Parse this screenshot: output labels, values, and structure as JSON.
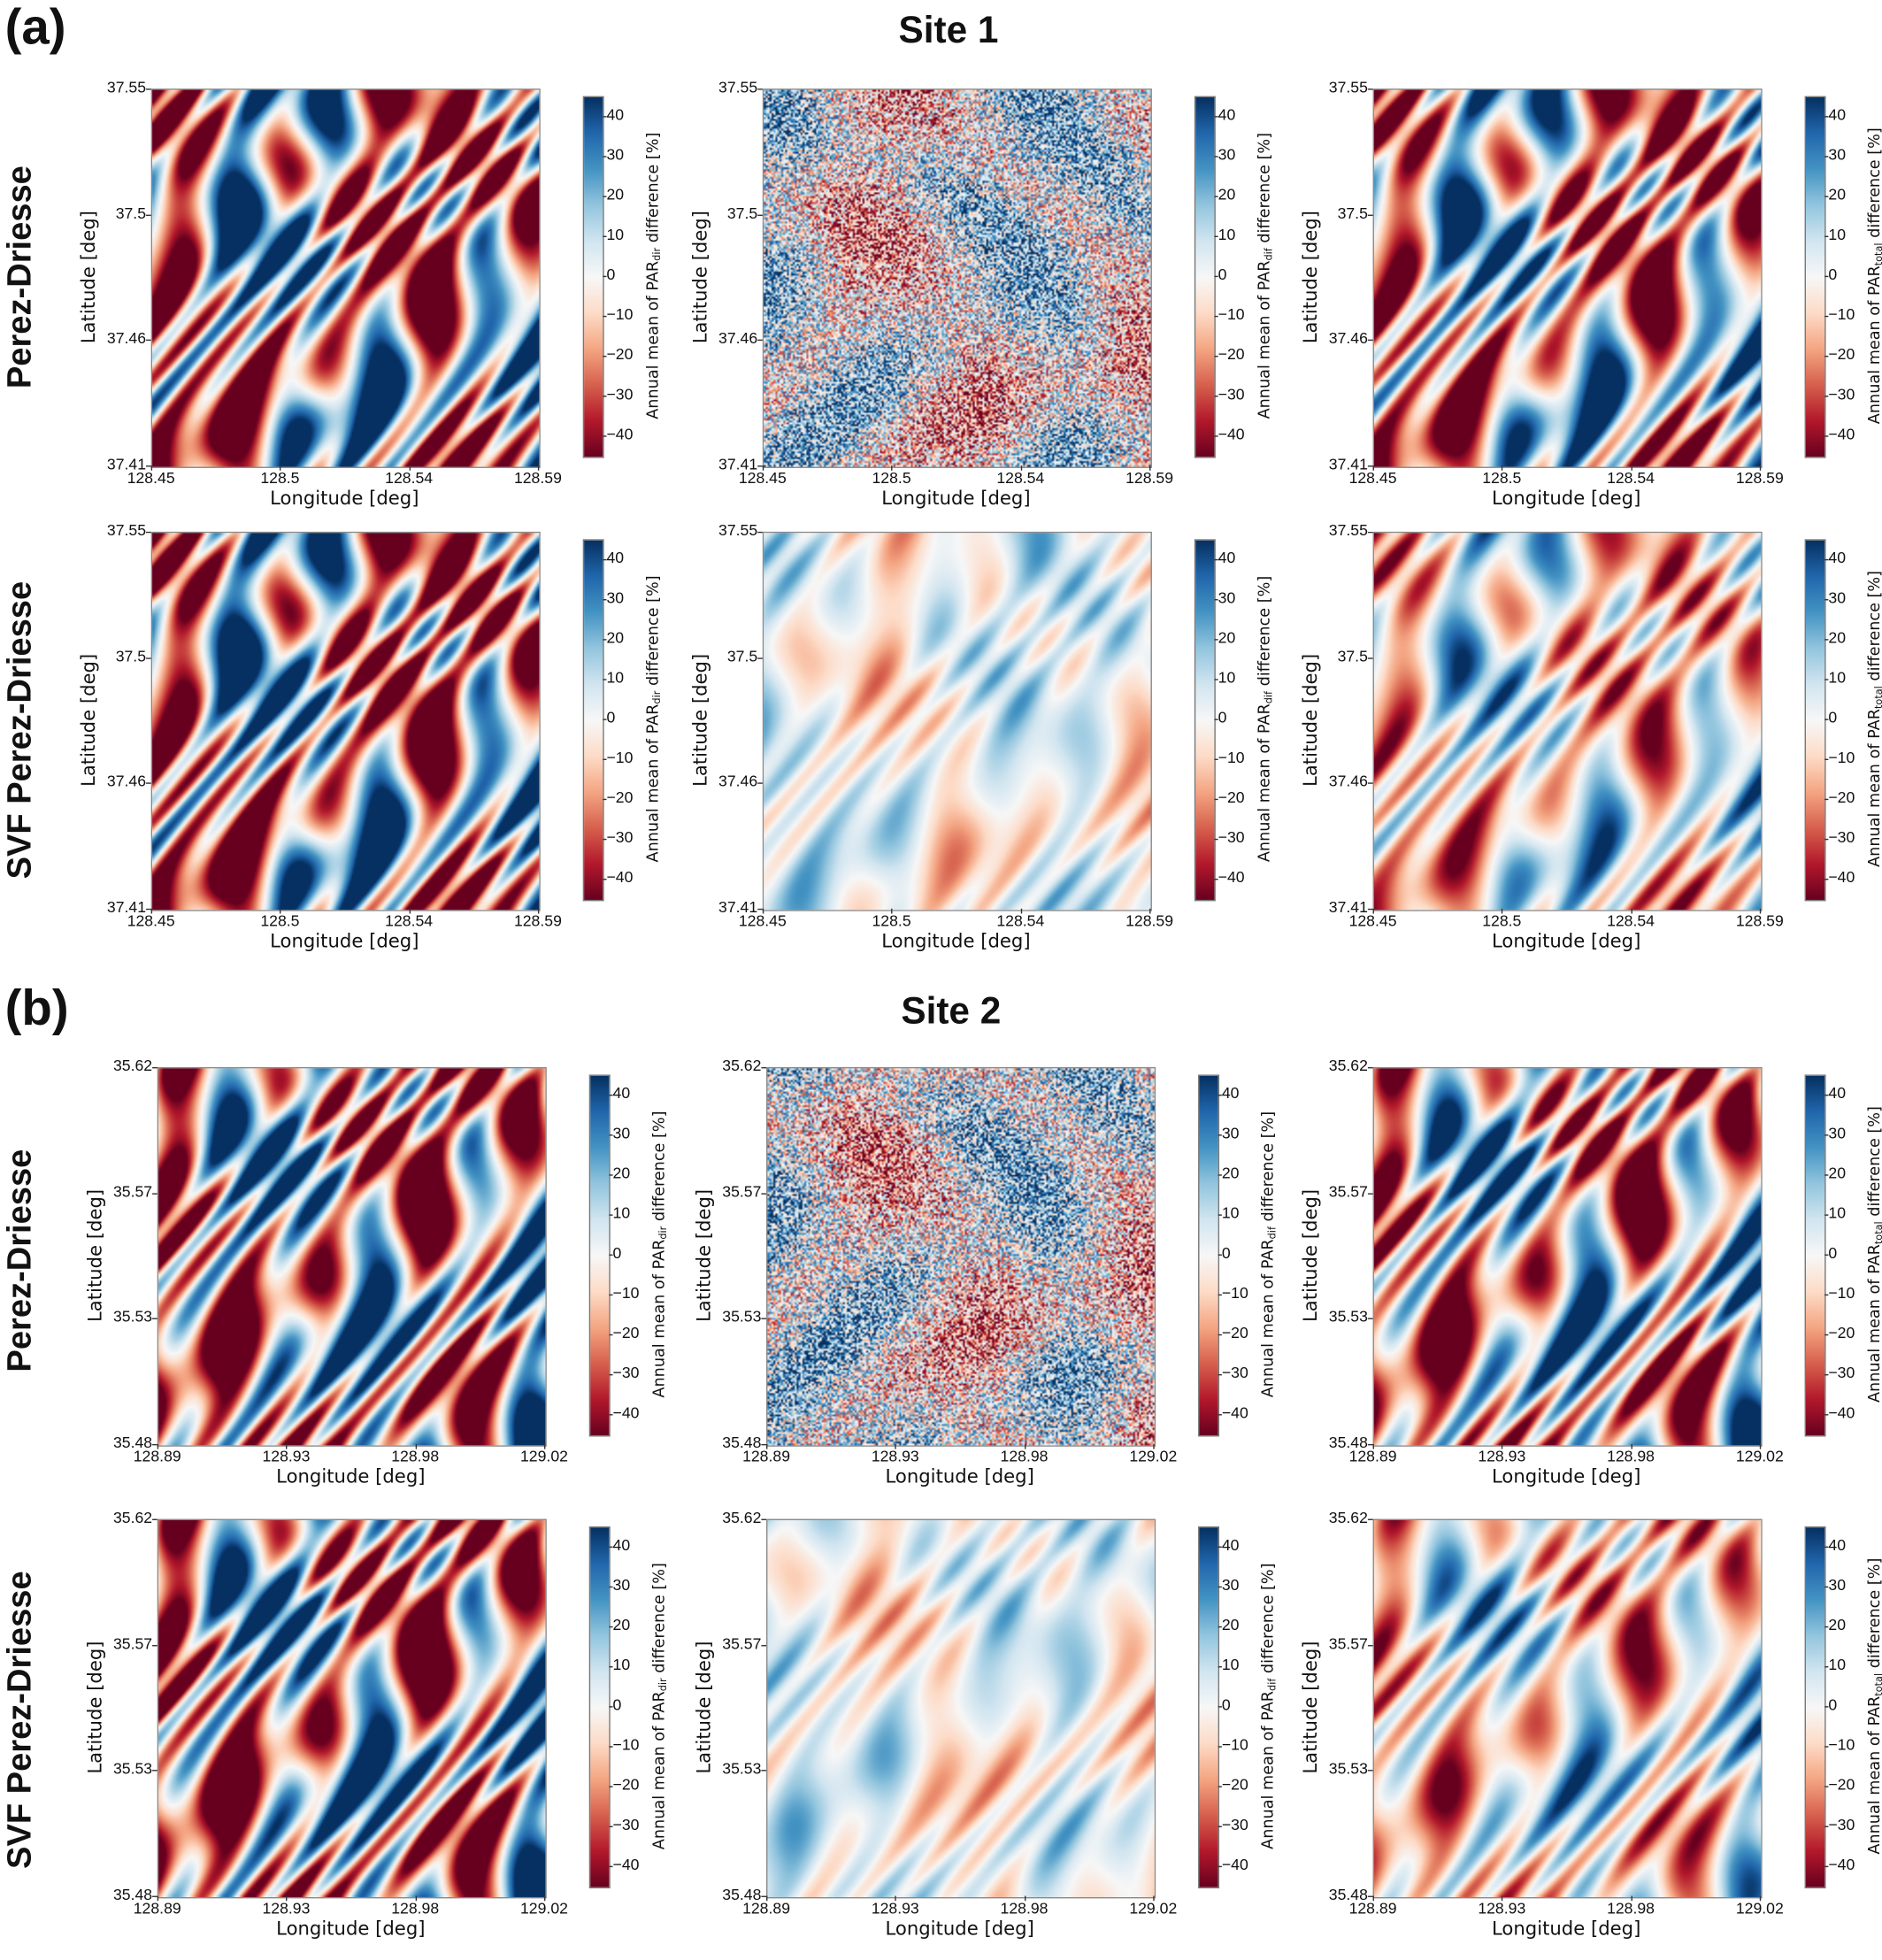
{
  "figure": {
    "panels": [
      {
        "letter": "(a)",
        "title": "Site 1",
        "rows": [
          "Perez-Driesse",
          "SVF Perez-Driesse"
        ]
      },
      {
        "letter": "(b)",
        "title": "Site 2",
        "rows": [
          "Perez-Driesse",
          "SVF Perez-Driesse"
        ]
      }
    ]
  },
  "colormap": {
    "name": "RdBu",
    "range": [
      -45,
      45
    ],
    "colors": [
      "#67001f",
      "#b2182b",
      "#d6604d",
      "#f4a582",
      "#fddbc7",
      "#f7f7f7",
      "#d1e5f0",
      "#92c5de",
      "#4393c3",
      "#2166ac",
      "#053061"
    ]
  },
  "chart_data": [
    {
      "type": "heatmap",
      "site": "Site 1",
      "model": "Perez-Driesse",
      "xlabel": "Longitude [deg]",
      "ylabel": "Latitude [deg]",
      "xticks": [
        "128.45",
        "128.5",
        "128.54",
        "128.59"
      ],
      "yticks": [
        "37.55",
        "37.5",
        "37.46",
        "37.41"
      ],
      "xlim": [
        128.45,
        128.59
      ],
      "ylim": [
        37.41,
        37.55
      ],
      "colorbar": {
        "pre": "Annual mean of PAR",
        "sub": "dir",
        "post": " difference [%]",
        "ticks": [
          "40",
          "30",
          "20",
          "10",
          "0",
          "−10",
          "−20",
          "−30",
          "−40"
        ],
        "range": [
          -45,
          45
        ]
      }
    },
    {
      "type": "heatmap",
      "site": "Site 1",
      "model": "Perez-Driesse",
      "xlabel": "Longitude [deg]",
      "ylabel": "Latitude [deg]",
      "xticks": [
        "128.45",
        "128.5",
        "128.54",
        "128.59"
      ],
      "yticks": [
        "37.55",
        "37.5",
        "37.46",
        "37.41"
      ],
      "xlim": [
        128.45,
        128.59
      ],
      "ylim": [
        37.41,
        37.55
      ],
      "colorbar": {
        "pre": "Annual mean of PAR",
        "sub": "dif",
        "post": " difference [%]",
        "ticks": [
          "40",
          "30",
          "20",
          "10",
          "0",
          "−10",
          "−20",
          "−30",
          "−40"
        ],
        "range": [
          -45,
          45
        ]
      }
    },
    {
      "type": "heatmap",
      "site": "Site 1",
      "model": "Perez-Driesse",
      "xlabel": "Longitude [deg]",
      "ylabel": "Latitude [deg]",
      "xticks": [
        "128.45",
        "128.5",
        "128.54",
        "128.59"
      ],
      "yticks": [
        "37.55",
        "37.5",
        "37.46",
        "37.41"
      ],
      "xlim": [
        128.45,
        128.59
      ],
      "ylim": [
        37.41,
        37.55
      ],
      "colorbar": {
        "pre": "Annual mean of PAR",
        "sub": "total",
        "post": " difference [%]",
        "ticks": [
          "40",
          "30",
          "20",
          "10",
          "0",
          "−10",
          "−20",
          "−30",
          "−40"
        ],
        "range": [
          -45,
          45
        ]
      }
    },
    {
      "type": "heatmap",
      "site": "Site 1",
      "model": "SVF Perez-Driesse",
      "xlabel": "Longitude [deg]",
      "ylabel": "Latitude [deg]",
      "xticks": [
        "128.45",
        "128.5",
        "128.54",
        "128.59"
      ],
      "yticks": [
        "37.55",
        "37.5",
        "37.46",
        "37.41"
      ],
      "xlim": [
        128.45,
        128.59
      ],
      "ylim": [
        37.41,
        37.55
      ],
      "colorbar": {
        "pre": "Annual mean of PAR",
        "sub": "dir",
        "post": " difference [%]",
        "ticks": [
          "40",
          "30",
          "20",
          "10",
          "0",
          "−10",
          "−20",
          "−30",
          "−40"
        ],
        "range": [
          -45,
          45
        ]
      }
    },
    {
      "type": "heatmap",
      "site": "Site 1",
      "model": "SVF Perez-Driesse",
      "xlabel": "Longitude [deg]",
      "ylabel": "Latitude [deg]",
      "xticks": [
        "128.45",
        "128.5",
        "128.54",
        "128.59"
      ],
      "yticks": [
        "37.55",
        "37.5",
        "37.46",
        "37.41"
      ],
      "xlim": [
        128.45,
        128.59
      ],
      "ylim": [
        37.41,
        37.55
      ],
      "colorbar": {
        "pre": "Annual mean of PAR",
        "sub": "dif",
        "post": " difference [%]",
        "ticks": [
          "40",
          "30",
          "20",
          "10",
          "0",
          "−10",
          "−20",
          "−30",
          "−40"
        ],
        "range": [
          -45,
          45
        ]
      }
    },
    {
      "type": "heatmap",
      "site": "Site 1",
      "model": "SVF Perez-Driesse",
      "xlabel": "Longitude [deg]",
      "ylabel": "Latitude [deg]",
      "xticks": [
        "128.45",
        "128.5",
        "128.54",
        "128.59"
      ],
      "yticks": [
        "37.55",
        "37.5",
        "37.46",
        "37.41"
      ],
      "xlim": [
        128.45,
        128.59
      ],
      "ylim": [
        37.41,
        37.55
      ],
      "colorbar": {
        "pre": "Annual mean of PAR",
        "sub": "total",
        "post": " difference [%]",
        "ticks": [
          "40",
          "30",
          "20",
          "10",
          "0",
          "−10",
          "−20",
          "−30",
          "−40"
        ],
        "range": [
          -45,
          45
        ]
      }
    },
    {
      "type": "heatmap",
      "site": "Site 2",
      "model": "Perez-Driesse",
      "xlabel": "Longitude [deg]",
      "ylabel": "Latitude [deg]",
      "xticks": [
        "128.89",
        "128.93",
        "128.98",
        "129.02"
      ],
      "yticks": [
        "35.62",
        "35.57",
        "35.53",
        "35.48"
      ],
      "xlim": [
        128.89,
        129.02
      ],
      "ylim": [
        35.48,
        35.62
      ],
      "colorbar": {
        "pre": "Annual mean of PAR",
        "sub": "dir",
        "post": " difference [%]",
        "ticks": [
          "40",
          "30",
          "20",
          "10",
          "0",
          "−10",
          "−20",
          "−30",
          "−40"
        ],
        "range": [
          -45,
          45
        ]
      }
    },
    {
      "type": "heatmap",
      "site": "Site 2",
      "model": "Perez-Driesse",
      "xlabel": "Longitude [deg]",
      "ylabel": "Latitude [deg]",
      "xticks": [
        "128.89",
        "128.93",
        "128.98",
        "129.02"
      ],
      "yticks": [
        "35.62",
        "35.57",
        "35.53",
        "35.48"
      ],
      "xlim": [
        128.89,
        129.02
      ],
      "ylim": [
        35.48,
        35.62
      ],
      "colorbar": {
        "pre": "Annual mean of PAR",
        "sub": "dif",
        "post": " difference [%]",
        "ticks": [
          "40",
          "30",
          "20",
          "10",
          "0",
          "−10",
          "−20",
          "−30",
          "−40"
        ],
        "range": [
          -45,
          45
        ]
      }
    },
    {
      "type": "heatmap",
      "site": "Site 2",
      "model": "Perez-Driesse",
      "xlabel": "Longitude [deg]",
      "ylabel": "Latitude [deg]",
      "xticks": [
        "128.89",
        "128.93",
        "128.98",
        "129.02"
      ],
      "yticks": [
        "35.62",
        "35.57",
        "35.53",
        "35.48"
      ],
      "xlim": [
        128.89,
        129.02
      ],
      "ylim": [
        35.48,
        35.62
      ],
      "colorbar": {
        "pre": "Annual mean of PAR",
        "sub": "total",
        "post": " difference [%]",
        "ticks": [
          "40",
          "30",
          "20",
          "10",
          "0",
          "−10",
          "−20",
          "−30",
          "−40"
        ],
        "range": [
          -45,
          45
        ]
      }
    },
    {
      "type": "heatmap",
      "site": "Site 2",
      "model": "SVF Perez-Driesse",
      "xlabel": "Longitude [deg]",
      "ylabel": "Latitude [deg]",
      "xticks": [
        "128.89",
        "128.93",
        "128.98",
        "129.02"
      ],
      "yticks": [
        "35.62",
        "35.57",
        "35.53",
        "35.48"
      ],
      "xlim": [
        128.89,
        129.02
      ],
      "ylim": [
        35.48,
        35.62
      ],
      "colorbar": {
        "pre": "Annual mean of PAR",
        "sub": "dir",
        "post": " difference [%]",
        "ticks": [
          "40",
          "30",
          "20",
          "10",
          "0",
          "−10",
          "−20",
          "−30",
          "−40"
        ],
        "range": [
          -45,
          45
        ]
      }
    },
    {
      "type": "heatmap",
      "site": "Site 2",
      "model": "SVF Perez-Driesse",
      "xlabel": "Longitude [deg]",
      "ylabel": "Latitude [deg]",
      "xticks": [
        "128.89",
        "128.93",
        "128.98",
        "129.02"
      ],
      "yticks": [
        "35.62",
        "35.57",
        "35.53",
        "35.48"
      ],
      "xlim": [
        128.89,
        129.02
      ],
      "ylim": [
        35.48,
        35.62
      ],
      "colorbar": {
        "pre": "Annual mean of PAR",
        "sub": "dif",
        "post": " difference [%]",
        "ticks": [
          "40",
          "30",
          "20",
          "10",
          "0",
          "−10",
          "−20",
          "−30",
          "−40"
        ],
        "range": [
          -45,
          45
        ]
      }
    },
    {
      "type": "heatmap",
      "site": "Site 2",
      "model": "SVF Perez-Driesse",
      "xlabel": "Longitude [deg]",
      "ylabel": "Latitude [deg]",
      "xticks": [
        "128.89",
        "128.93",
        "128.98",
        "129.02"
      ],
      "yticks": [
        "35.62",
        "35.57",
        "35.53",
        "35.48"
      ],
      "xlim": [
        128.89,
        129.02
      ],
      "ylim": [
        35.48,
        35.62
      ],
      "colorbar": {
        "pre": "Annual mean of PAR",
        "sub": "total",
        "post": " difference [%]",
        "ticks": [
          "40",
          "30",
          "20",
          "10",
          "0",
          "−10",
          "−20",
          "−30",
          "−40"
        ],
        "range": [
          -45,
          45
        ]
      }
    }
  ]
}
